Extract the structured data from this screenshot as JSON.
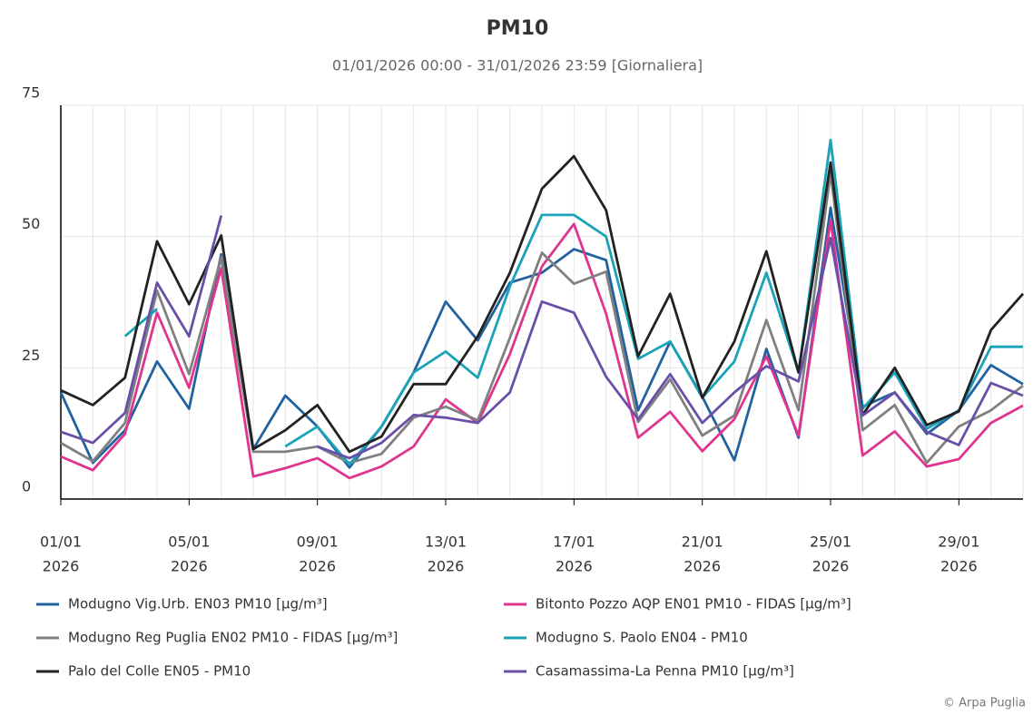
{
  "chart_data": {
    "type": "line",
    "title": "PM10",
    "subtitle": "01/01/2026 00:00 - 31/01/2026 23:59 [Giornaliera]",
    "credit": "© Arpa Puglia",
    "x": [
      "01/01/2026",
      "02/01/2026",
      "03/01/2026",
      "04/01/2026",
      "05/01/2026",
      "06/01/2026",
      "07/01/2026",
      "08/01/2026",
      "09/01/2026",
      "10/01/2026",
      "11/01/2026",
      "12/01/2026",
      "13/01/2026",
      "14/01/2026",
      "15/01/2026",
      "16/01/2026",
      "17/01/2026",
      "18/01/2026",
      "19/01/2026",
      "20/01/2026",
      "21/01/2026",
      "22/01/2026",
      "23/01/2026",
      "24/01/2026",
      "25/01/2026",
      "26/01/2026",
      "27/01/2026",
      "28/01/2026",
      "29/01/2026",
      "30/01/2026",
      "31/01/2026"
    ],
    "xticks": [
      {
        "value": "01/01/2026",
        "label": [
          "01/01",
          "2026"
        ]
      },
      {
        "value": "05/01/2026",
        "label": [
          "05/01",
          "2026"
        ]
      },
      {
        "value": "09/01/2026",
        "label": [
          "09/01",
          "2026"
        ]
      },
      {
        "value": "13/01/2026",
        "label": [
          "13/01",
          "2026"
        ]
      },
      {
        "value": "17/01/2026",
        "label": [
          "17/01",
          "2026"
        ]
      },
      {
        "value": "21/01/2026",
        "label": [
          "21/01",
          "2026"
        ]
      },
      {
        "value": "25/01/2026",
        "label": [
          "25/01",
          "2026"
        ]
      },
      {
        "value": "29/01/2026",
        "label": [
          "29/01",
          "2026"
        ]
      }
    ],
    "ylim": [
      0,
      75
    ],
    "yticks": [
      0,
      25,
      50,
      75
    ],
    "grid": true,
    "series": [
      {
        "name": "Modugno Vig.Urb. EN03 PM10 [µg/m³]",
        "color": "#22629e",
        "values": [
          20.3,
          6.9,
          13.1,
          26.2,
          17.2,
          46.6,
          9.5,
          19.7,
          13.8,
          6.0,
          13.8,
          24.1,
          37.6,
          30.2,
          41.2,
          43.1,
          47.6,
          45.5,
          16.9,
          30.0,
          19.5,
          7.4,
          28.6,
          11.7,
          55.5,
          17.6,
          20.3,
          12.4,
          16.9,
          25.5,
          21.9
        ]
      },
      {
        "name": "Bitonto Pozzo AQP EN01 PM10 - FIDAS [µg/m³]",
        "color": "#e0358f",
        "values": [
          8.1,
          5.5,
          12.4,
          35.5,
          21.2,
          44.0,
          4.3,
          5.9,
          7.8,
          4.0,
          6.2,
          10.0,
          19.0,
          14.5,
          27.6,
          44.3,
          52.4,
          35.3,
          11.7,
          16.6,
          9.1,
          15.2,
          27.2,
          12.1,
          53.1,
          8.3,
          12.9,
          6.2,
          7.6,
          14.5,
          17.8
        ]
      },
      {
        "name": "Modugno Reg Puglia EN02 PM10 - FIDAS [µg/m³]",
        "color": "#808080",
        "values": [
          10.7,
          7.2,
          14.5,
          39.7,
          23.8,
          46.0,
          9.0,
          9.0,
          10.0,
          6.9,
          8.6,
          15.5,
          17.6,
          15.0,
          30.7,
          46.9,
          41.0,
          43.3,
          14.7,
          22.8,
          12.1,
          15.9,
          34.1,
          16.9,
          62.1,
          13.1,
          17.9,
          6.9,
          13.8,
          16.9,
          21.6
        ]
      },
      {
        "name": "Modugno S. Paolo EN04 - PM10",
        "color": "#1aa3b8",
        "values": [
          null,
          null,
          31.0,
          36.2,
          null,
          null,
          null,
          10.0,
          13.8,
          6.6,
          13.8,
          24.1,
          28.1,
          23.1,
          40.5,
          54.1,
          54.1,
          50.0,
          26.7,
          30.0,
          19.3,
          26.2,
          43.1,
          24.1,
          68.4,
          17.2,
          24.1,
          13.4,
          16.9,
          29.0,
          29.0
        ]
      },
      {
        "name": "Palo del Colle EN05 - PM10",
        "color": "#222222",
        "values": [
          20.7,
          17.9,
          23.1,
          49.1,
          37.1,
          50.2,
          9.5,
          13.1,
          17.9,
          9.0,
          11.9,
          21.9,
          21.9,
          31.0,
          43.1,
          59.1,
          65.3,
          55.0,
          27.2,
          39.1,
          19.3,
          30.0,
          47.2,
          24.1,
          64.1,
          16.0,
          25.0,
          14.1,
          16.7,
          32.2,
          39.1
        ]
      },
      {
        "name": "Casamassima-La Penna PM10 [µg/m³]",
        "color": "#6a4fa8",
        "values": [
          12.8,
          10.7,
          16.4,
          41.2,
          31.0,
          54.0,
          null,
          null,
          10.0,
          7.8,
          10.7,
          16.0,
          15.5,
          14.5,
          20.3,
          37.6,
          35.5,
          23.3,
          15.2,
          23.8,
          14.5,
          20.3,
          25.3,
          22.4,
          49.7,
          15.9,
          20.3,
          12.8,
          10.3,
          22.1,
          19.7
        ]
      }
    ]
  }
}
